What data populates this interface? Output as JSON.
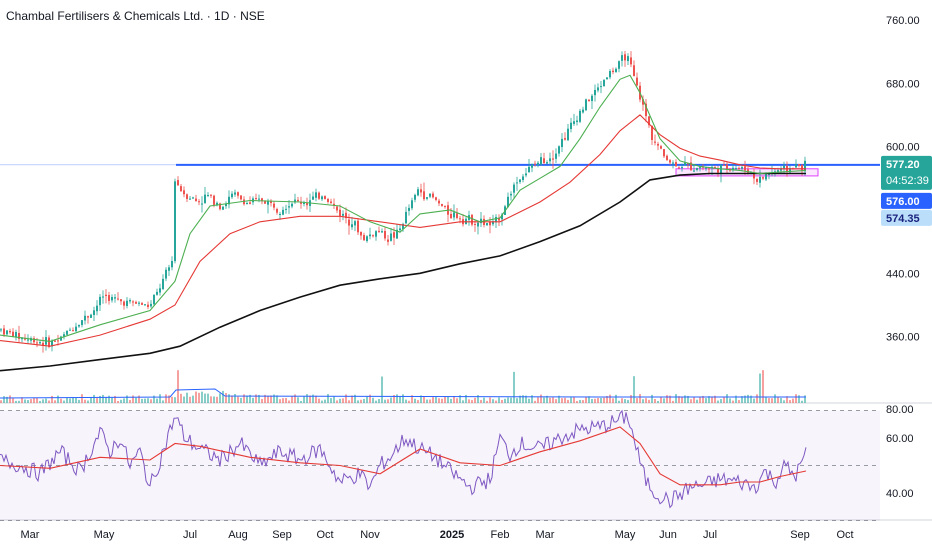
{
  "title": "Chambal Fertilisers & Chemicals Ltd. · 1D · NSE",
  "colors": {
    "up": "#26a69a",
    "down": "#ef5350",
    "ma_fast": "#4caf50",
    "ma_mid": "#e53935",
    "ma_slow": "#111111",
    "level": "#2962ff",
    "zone": "#e040fb",
    "rsi": "#7e57c2",
    "rsi_ma": "#e53935",
    "volume_ma": "#2962ff"
  },
  "chart_data": [
    {
      "type": "candlestick",
      "ylim": [
        280,
        770
      ],
      "y_ticks": [
        "760.00",
        "680.00",
        "600.00",
        "440.00",
        "360.00"
      ],
      "x_ticks": [
        "Mar",
        "May",
        "Jul",
        "Aug",
        "Sep",
        "Oct",
        "Nov",
        "2025",
        "Feb",
        "Mar",
        "May",
        "Jun",
        "Jul",
        "Sep",
        "Oct"
      ],
      "price_labels": {
        "last": "577.20",
        "countdown": "04:52:39",
        "level_a": "576.00",
        "level_b": "574.35"
      },
      "horizontal_level": 577,
      "support_zone": [
        563,
        572
      ],
      "price_anchors": [
        [
          0,
          370
        ],
        [
          25,
          358
        ],
        [
          50,
          352
        ],
        [
          60,
          355
        ],
        [
          75,
          372
        ],
        [
          95,
          392
        ],
        [
          105,
          412
        ],
        [
          120,
          405
        ],
        [
          140,
          402
        ],
        [
          152,
          398
        ],
        [
          165,
          430
        ],
        [
          175,
          458
        ],
        [
          176,
          560
        ],
        [
          185,
          542
        ],
        [
          200,
          530
        ],
        [
          210,
          538
        ],
        [
          225,
          525
        ],
        [
          235,
          540
        ],
        [
          250,
          528
        ],
        [
          265,
          533
        ],
        [
          280,
          522
        ],
        [
          295,
          530
        ],
        [
          310,
          530
        ],
        [
          325,
          540
        ],
        [
          340,
          518
        ],
        [
          355,
          505
        ],
        [
          365,
          483
        ],
        [
          380,
          494
        ],
        [
          390,
          485
        ],
        [
          400,
          490
        ],
        [
          410,
          520
        ],
        [
          420,
          545
        ],
        [
          435,
          535
        ],
        [
          450,
          517
        ],
        [
          465,
          510
        ],
        [
          480,
          505
        ],
        [
          495,
          500
        ],
        [
          505,
          520
        ],
        [
          515,
          550
        ],
        [
          525,
          565
        ],
        [
          540,
          580
        ],
        [
          555,
          590
        ],
        [
          570,
          620
        ],
        [
          585,
          650
        ],
        [
          598,
          670
        ],
        [
          610,
          692
        ],
        [
          620,
          700
        ],
        [
          628,
          718
        ],
        [
          635,
          690
        ],
        [
          645,
          650
        ],
        [
          655,
          610
        ],
        [
          665,
          590
        ],
        [
          675,
          578
        ],
        [
          690,
          575
        ],
        [
          705,
          574
        ],
        [
          720,
          572
        ],
        [
          735,
          575
        ],
        [
          750,
          570
        ],
        [
          760,
          556
        ],
        [
          770,
          566
        ],
        [
          780,
          570
        ],
        [
          790,
          572
        ],
        [
          800,
          575
        ],
        [
          806,
          577
        ]
      ],
      "ma_fast": [
        [
          0,
          362
        ],
        [
          50,
          354
        ],
        [
          100,
          375
        ],
        [
          150,
          393
        ],
        [
          175,
          430
        ],
        [
          190,
          490
        ],
        [
          210,
          525
        ],
        [
          250,
          532
        ],
        [
          300,
          530
        ],
        [
          340,
          525
        ],
        [
          370,
          505
        ],
        [
          400,
          492
        ],
        [
          420,
          515
        ],
        [
          450,
          520
        ],
        [
          480,
          505
        ],
        [
          500,
          510
        ],
        [
          520,
          545
        ],
        [
          540,
          560
        ],
        [
          560,
          575
        ],
        [
          580,
          610
        ],
        [
          600,
          650
        ],
        [
          620,
          685
        ],
        [
          630,
          690
        ],
        [
          640,
          668
        ],
        [
          660,
          610
        ],
        [
          680,
          582
        ],
        [
          700,
          575
        ],
        [
          720,
          572
        ],
        [
          740,
          570
        ],
        [
          760,
          566
        ],
        [
          780,
          568
        ],
        [
          806,
          570
        ]
      ],
      "ma_mid": [
        [
          0,
          355
        ],
        [
          50,
          348
        ],
        [
          100,
          362
        ],
        [
          150,
          382
        ],
        [
          175,
          400
        ],
        [
          200,
          455
        ],
        [
          230,
          490
        ],
        [
          260,
          505
        ],
        [
          300,
          512
        ],
        [
          340,
          512
        ],
        [
          380,
          505
        ],
        [
          420,
          498
        ],
        [
          460,
          505
        ],
        [
          500,
          505
        ],
        [
          540,
          530
        ],
        [
          570,
          555
        ],
        [
          600,
          590
        ],
        [
          620,
          620
        ],
        [
          640,
          640
        ],
        [
          660,
          615
        ],
        [
          680,
          598
        ],
        [
          700,
          588
        ],
        [
          720,
          583
        ],
        [
          740,
          577
        ],
        [
          760,
          573
        ],
        [
          780,
          572
        ],
        [
          806,
          572
        ]
      ],
      "ma_slow": [
        [
          0,
          317
        ],
        [
          50,
          323
        ],
        [
          100,
          331
        ],
        [
          150,
          339
        ],
        [
          180,
          348
        ],
        [
          220,
          372
        ],
        [
          260,
          393
        ],
        [
          300,
          410
        ],
        [
          340,
          425
        ],
        [
          380,
          433
        ],
        [
          420,
          440
        ],
        [
          460,
          452
        ],
        [
          500,
          462
        ],
        [
          540,
          480
        ],
        [
          580,
          500
        ],
        [
          620,
          530
        ],
        [
          650,
          558
        ],
        [
          680,
          564
        ],
        [
          710,
          566
        ],
        [
          740,
          566
        ],
        [
          770,
          566
        ],
        [
          806,
          566
        ]
      ]
    },
    {
      "type": "volume",
      "spike_days": [
        176,
        178,
        380,
        512,
        632,
        760,
        762
      ]
    },
    {
      "type": "line",
      "name": "RSI",
      "ylim": [
        32,
        72
      ],
      "y_ticks": [
        "80.00",
        "60.00",
        "40.00"
      ],
      "band_upper": 70,
      "band_mid": 50,
      "band_lower": 30,
      "rsi": [
        [
          0,
          52
        ],
        [
          20,
          50
        ],
        [
          40,
          47
        ],
        [
          60,
          55
        ],
        [
          80,
          48
        ],
        [
          100,
          62
        ],
        [
          110,
          55
        ],
        [
          120,
          60
        ],
        [
          130,
          50
        ],
        [
          140,
          55
        ],
        [
          150,
          42
        ],
        [
          160,
          52
        ],
        [
          175,
          68
        ],
        [
          185,
          60
        ],
        [
          200,
          56
        ],
        [
          220,
          52
        ],
        [
          240,
          58
        ],
        [
          260,
          50
        ],
        [
          280,
          55
        ],
        [
          300,
          52
        ],
        [
          320,
          56
        ],
        [
          340,
          44
        ],
        [
          360,
          47
        ],
        [
          370,
          42
        ],
        [
          380,
          50
        ],
        [
          390,
          53
        ],
        [
          405,
          60
        ],
        [
          420,
          56
        ],
        [
          435,
          53
        ],
        [
          450,
          48
        ],
        [
          470,
          42
        ],
        [
          490,
          45
        ],
        [
          500,
          60
        ],
        [
          510,
          54
        ],
        [
          520,
          58
        ],
        [
          540,
          56
        ],
        [
          560,
          60
        ],
        [
          580,
          63
        ],
        [
          600,
          64
        ],
        [
          615,
          66
        ],
        [
          628,
          68
        ],
        [
          635,
          58
        ],
        [
          645,
          45
        ],
        [
          655,
          40
        ],
        [
          670,
          37
        ],
        [
          690,
          42
        ],
        [
          705,
          43
        ],
        [
          720,
          45
        ],
        [
          740,
          44
        ],
        [
          755,
          42
        ],
        [
          765,
          48
        ],
        [
          775,
          44
        ],
        [
          785,
          50
        ],
        [
          795,
          46
        ],
        [
          806,
          54
        ]
      ],
      "rsi_ma": [
        [
          0,
          50
        ],
        [
          50,
          49
        ],
        [
          100,
          53
        ],
        [
          150,
          52
        ],
        [
          175,
          58
        ],
        [
          200,
          57
        ],
        [
          250,
          53
        ],
        [
          300,
          51
        ],
        [
          340,
          50
        ],
        [
          380,
          47
        ],
        [
          420,
          56
        ],
        [
          460,
          51
        ],
        [
          500,
          50
        ],
        [
          540,
          55
        ],
        [
          580,
          59
        ],
        [
          620,
          64
        ],
        [
          640,
          58
        ],
        [
          660,
          47
        ],
        [
          680,
          43
        ],
        [
          700,
          43
        ],
        [
          720,
          43
        ],
        [
          740,
          44
        ],
        [
          760,
          44
        ],
        [
          780,
          46
        ],
        [
          806,
          48
        ]
      ]
    }
  ]
}
